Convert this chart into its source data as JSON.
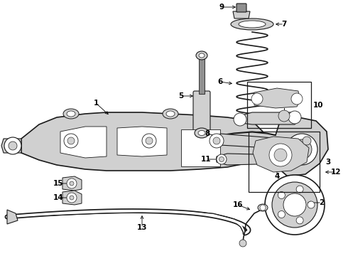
{
  "bg_color": "#ffffff",
  "lc": "#1a1a1a",
  "gc": "#b0b0b0",
  "lgc": "#d0d0d0",
  "mgc": "#909090",
  "figure_width": 4.9,
  "figure_height": 3.6,
  "dpi": 100,
  "title": "",
  "aspect": "equal"
}
